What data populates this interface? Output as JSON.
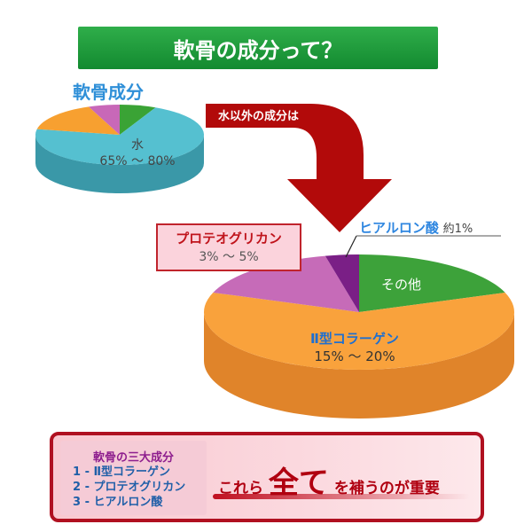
{
  "title": "軟骨の成分って？",
  "small_pie": {
    "label": "軟骨成分",
    "water_name": "水",
    "water_value": "65% ～ 80%",
    "slices": [
      {
        "key": "other",
        "share": 7,
        "color": "#3aa335",
        "side": "#2a7a25"
      },
      {
        "key": "water",
        "share": 71,
        "color": "#55c0d0",
        "side": "#3a98a8"
      },
      {
        "key": "collagen",
        "share": 16,
        "color": "#f7a030",
        "side": "#d07e18"
      },
      {
        "key": "proteoglycan",
        "share": 6,
        "color": "#c868b8",
        "side": "#9e4890"
      }
    ]
  },
  "arrow_label": "水以外の成分は",
  "big_pie": {
    "proteoglycan_name": "プロテオグリカン",
    "proteoglycan_value": "3% ～ 5%",
    "hyaluronic_name": "ヒアルロン酸",
    "hyaluronic_value": "約1%",
    "other_name": "その他",
    "collagen_name": "Ⅱ型コラーゲン",
    "collagen_value": "15% ～ 20%",
    "slices": [
      {
        "key": "other",
        "share": 19.5,
        "color": "#3da23a",
        "side": "#2c7e2a"
      },
      {
        "key": "collagen",
        "share": 61,
        "color": "#f9a23c",
        "side": "#e0842a"
      },
      {
        "key": "proteoglycan",
        "share": 16,
        "color": "#c66bb8",
        "side": "#9e4c92"
      },
      {
        "key": "hyaluronic",
        "share": 3.5,
        "color": "#7a1f86",
        "side": "#5a1464"
      }
    ]
  },
  "summary": {
    "title": "軟骨の三大成分",
    "items": [
      "1 - Ⅱ型コラーゲン",
      "2 - プロテオグリカン",
      "3 - ヒアルロン酸"
    ],
    "msg_pre": "これら",
    "msg_big": "全て",
    "msg_post": "を補うのが重要"
  }
}
